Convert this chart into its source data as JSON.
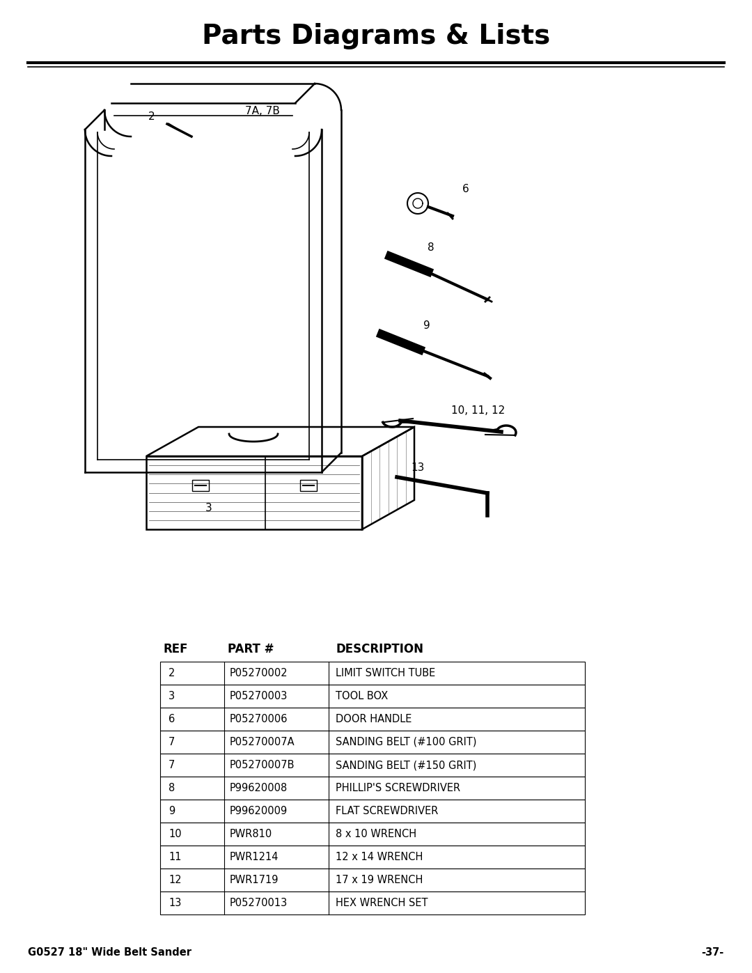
{
  "title": "Parts Diagrams & Lists",
  "title_fontsize": 28,
  "title_fontweight": "bold",
  "bg_color": "#ffffff",
  "text_color": "#000000",
  "footer_left": "G0527 18\" Wide Belt Sander",
  "footer_right": "-37-",
  "table_headers": [
    "REF",
    "PART #",
    "DESCRIPTION"
  ],
  "table_col_labels": [
    "REF",
    "PART #",
    "DESCRIPTION"
  ],
  "table_rows": [
    [
      "2",
      "P05270002",
      "LIMIT SWITCH TUBE"
    ],
    [
      "3",
      "P05270003",
      "TOOL BOX"
    ],
    [
      "6",
      "P05270006",
      "DOOR HANDLE"
    ],
    [
      "7",
      "P05270007A",
      "SANDING BELT (#100 GRIT)"
    ],
    [
      "7",
      "P05270007B",
      "SANDING BELT (#150 GRIT)"
    ],
    [
      "8",
      "P99620008",
      "PHILLIP'S SCREWDRIVER"
    ],
    [
      "9",
      "P99620009",
      "FLAT SCREWDRIVER"
    ],
    [
      "10",
      "PWR810",
      "8 x 10 WRENCH"
    ],
    [
      "11",
      "PWR1214",
      "12 x 14 WRENCH"
    ],
    [
      "12",
      "PWR1719",
      "17 x 19 WRENCH"
    ],
    [
      "13",
      "P05270013",
      "HEX WRENCH SET"
    ]
  ]
}
